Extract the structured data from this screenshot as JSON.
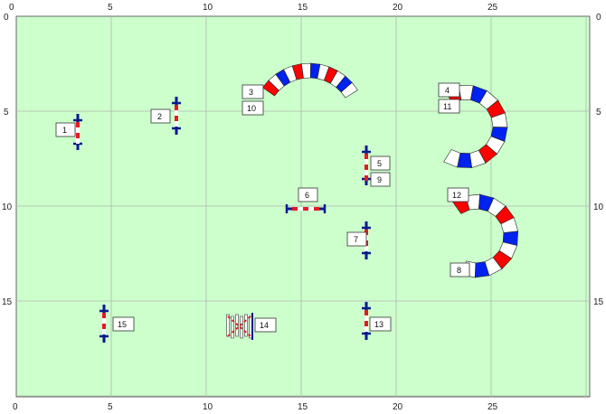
{
  "x_ticks": [
    "0",
    "5",
    "10",
    "15",
    "20",
    "25"
  ],
  "y_ticks": [
    "0",
    "5",
    "10",
    "15"
  ],
  "colors": {
    "field": "#ccffcc",
    "grid": "#b0b8b0",
    "frame": "#666666",
    "pole_red": "#e31b23",
    "pole_white": "#ffffff",
    "stand_blue": "#0a1a8c",
    "tunnel_red": "#ff0000",
    "tunnel_blue": "#0022ee"
  },
  "obstacles": [
    {
      "type": "jump",
      "orientation": "vertical"
    },
    {
      "type": "jump",
      "orientation": "vertical"
    },
    {
      "type": "tunnel",
      "shape": "arc-top"
    },
    {
      "type": "tunnel",
      "shape": "arc-right"
    },
    {
      "type": "jump",
      "orientation": "vertical"
    },
    {
      "type": "jump",
      "orientation": "horizontal"
    },
    {
      "type": "jump",
      "orientation": "vertical"
    },
    {
      "type": "tunnel",
      "shape": "arc-right"
    },
    {
      "type": "jump",
      "orientation": "vertical"
    },
    {
      "type": "jump",
      "orientation": "vertical"
    },
    {
      "type": "wall",
      "orientation": "vertical"
    }
  ],
  "labels": [
    "1",
    "2",
    "3",
    "10",
    "4",
    "11",
    "5",
    "9",
    "6",
    "7",
    "12",
    "8",
    "15",
    "14",
    "13"
  ]
}
